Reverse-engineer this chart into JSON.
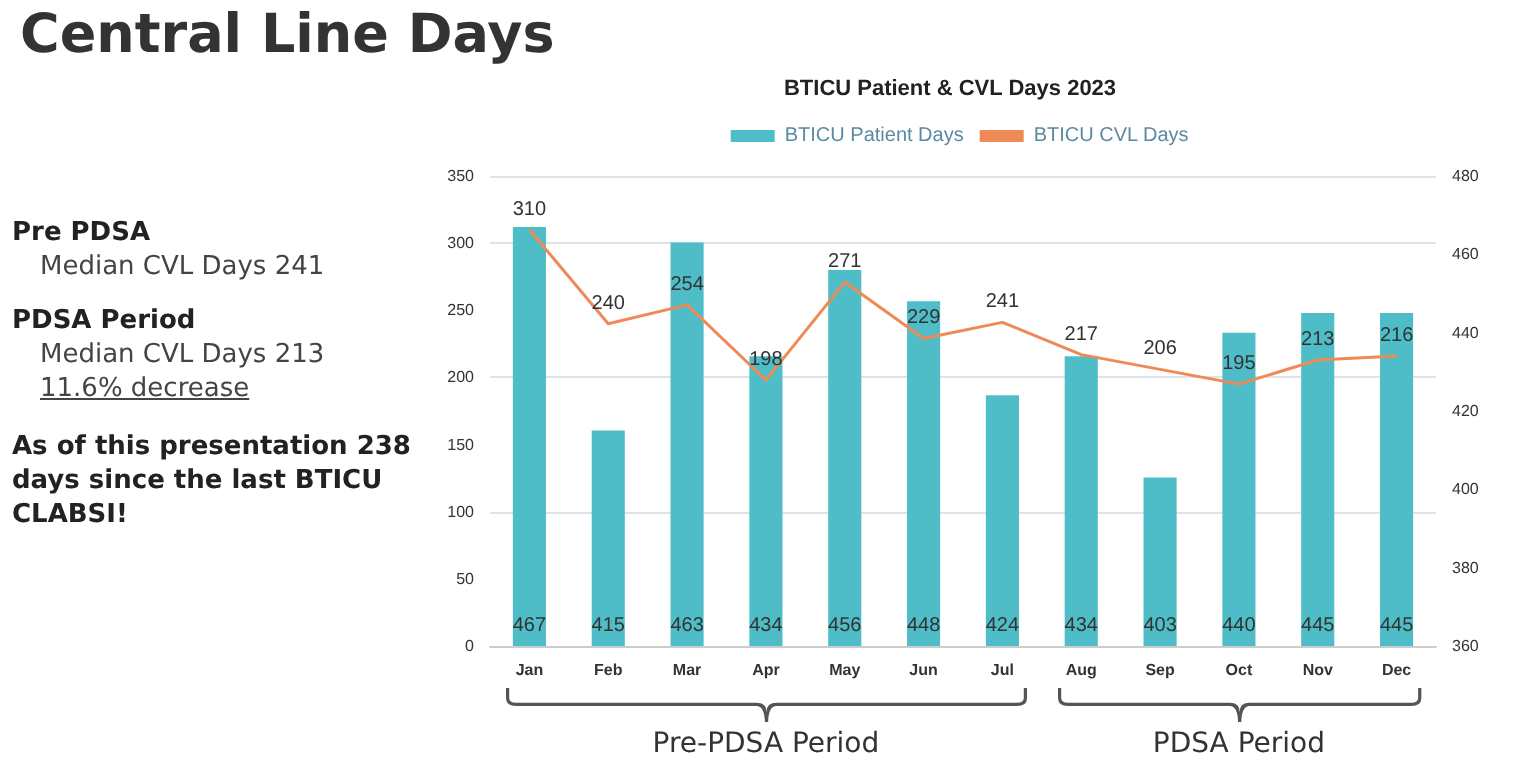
{
  "chart_data": {
    "type": "bar",
    "title": "Central Line Days",
    "subtitle": "BTICU Patient & CVL Days 2023",
    "categories": [
      "Jan",
      "Feb",
      "Mar",
      "Apr",
      "May",
      "Jun",
      "Jul",
      "Aug",
      "Sep",
      "Oct",
      "Nov",
      "Dec"
    ],
    "series": [
      {
        "name": "BTICU Patient Days",
        "axis": "y2",
        "color": "#4fbdc8",
        "values": [
          467,
          415,
          463,
          434,
          456,
          448,
          424,
          434,
          403,
          440,
          445,
          445
        ]
      },
      {
        "name": "BTICU CVL Days",
        "type": "line",
        "color": "#ee8a55",
        "marker": "none",
        "values": [
          310,
          240,
          254,
          198,
          271,
          229,
          241,
          217,
          206,
          195,
          213,
          216
        ]
      }
    ],
    "ylim": [
      0,
      350
    ],
    "yticks": [
      0,
      50,
      100,
      150,
      200,
      250,
      300,
      350
    ],
    "y2lim": [
      360,
      480
    ],
    "y2ticks": [
      360,
      380,
      400,
      420,
      440,
      460,
      480
    ],
    "grid": "y",
    "legend": "top",
    "data_labels": true,
    "annotations": [
      "Pre PDSA",
      "Median CVL Days 241",
      "PDSA Period",
      "Median CVL Days 213",
      "11.6% decrease",
      "As of this presentation 238 days since the last BTICU CLABSI!",
      "Pre-PDSA Period",
      "PDSA Period"
    ]
  }
}
